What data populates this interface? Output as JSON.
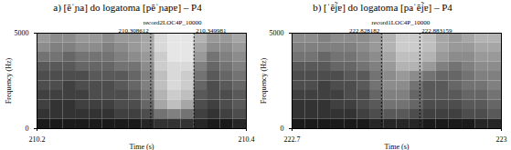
{
  "chart_data": [
    {
      "type": "heatmap",
      "title": "a) [ẽˈɲa] do logatoma [pẽˈɲapɐ] – P4",
      "x_label": "Time (s)",
      "y_label": "Frequency (Hz)",
      "xlim": [
        210.2,
        210.4
      ],
      "xticks": [
        210.2,
        210.4
      ],
      "ylim": [
        0,
        5000
      ],
      "yticks": [
        0,
        5000
      ],
      "annotations": [
        "record2LOC4P_10000"
      ],
      "cursors": [
        210.308612,
        210.349981
      ],
      "intensity_range": [
        0,
        100
      ],
      "intensity": [
        [
          40,
          45,
          45,
          40,
          40,
          45,
          40,
          40,
          35,
          15,
          10,
          10,
          30,
          40,
          40,
          35
        ],
        [
          45,
          50,
          50,
          45,
          45,
          50,
          45,
          40,
          35,
          15,
          10,
          10,
          35,
          45,
          45,
          40
        ],
        [
          55,
          55,
          60,
          55,
          55,
          55,
          50,
          45,
          40,
          20,
          10,
          10,
          40,
          55,
          50,
          45
        ],
        [
          65,
          65,
          65,
          60,
          60,
          60,
          55,
          55,
          45,
          20,
          15,
          15,
          50,
          60,
          55,
          50
        ],
        [
          70,
          70,
          70,
          70,
          65,
          65,
          65,
          60,
          50,
          25,
          15,
          20,
          55,
          65,
          60,
          55
        ],
        [
          70,
          70,
          75,
          70,
          70,
          70,
          65,
          60,
          50,
          25,
          15,
          20,
          60,
          70,
          65,
          60
        ],
        [
          75,
          75,
          75,
          75,
          70,
          70,
          70,
          65,
          55,
          30,
          20,
          25,
          65,
          70,
          70,
          65
        ],
        [
          75,
          80,
          80,
          75,
          75,
          75,
          70,
          70,
          60,
          35,
          25,
          35,
          70,
          75,
          70,
          65
        ],
        [
          80,
          80,
          80,
          80,
          80,
          80,
          75,
          75,
          70,
          55,
          50,
          55,
          75,
          80,
          75,
          70
        ],
        [
          90,
          90,
          90,
          90,
          90,
          90,
          90,
          90,
          85,
          80,
          80,
          80,
          85,
          90,
          90,
          85
        ]
      ]
    },
    {
      "type": "heatmap",
      "title": "b) [ˈẽj̃ɐ] do logatoma [paˈẽj̃ɐ] – P4",
      "x_label": "Time (s)",
      "y_label": "Frequency (Hz)",
      "xlim": [
        222.7,
        223
      ],
      "xticks": [
        222.7,
        223
      ],
      "ylim": [
        0,
        5000
      ],
      "yticks": [
        0,
        5000
      ],
      "annotations": [
        "record1LOC4P_10000"
      ],
      "cursors": [
        222.828182,
        222.883159
      ],
      "intensity_range": [
        0,
        100
      ],
      "intensity": [
        [
          45,
          45,
          50,
          45,
          45,
          45,
          40,
          30,
          20,
          20,
          25,
          35,
          40,
          35,
          30,
          30
        ],
        [
          50,
          50,
          50,
          50,
          50,
          45,
          40,
          30,
          20,
          20,
          25,
          35,
          40,
          40,
          35,
          35
        ],
        [
          55,
          55,
          60,
          55,
          55,
          50,
          45,
          35,
          25,
          25,
          30,
          40,
          45,
          45,
          40,
          40
        ],
        [
          65,
          65,
          65,
          60,
          60,
          55,
          50,
          40,
          30,
          30,
          40,
          50,
          55,
          50,
          45,
          45
        ],
        [
          70,
          70,
          70,
          70,
          65,
          65,
          55,
          45,
          40,
          45,
          55,
          60,
          60,
          55,
          50,
          50
        ],
        [
          70,
          70,
          75,
          70,
          70,
          65,
          55,
          45,
          45,
          55,
          65,
          65,
          60,
          55,
          55,
          50
        ],
        [
          75,
          75,
          75,
          75,
          70,
          70,
          60,
          50,
          50,
          60,
          65,
          65,
          65,
          60,
          60,
          55
        ],
        [
          80,
          80,
          80,
          75,
          75,
          70,
          65,
          55,
          55,
          60,
          70,
          70,
          70,
          65,
          65,
          60
        ],
        [
          80,
          80,
          80,
          80,
          80,
          75,
          70,
          65,
          65,
          70,
          75,
          75,
          75,
          70,
          70,
          65
        ],
        [
          90,
          90,
          90,
          90,
          90,
          90,
          85,
          85,
          85,
          85,
          90,
          90,
          90,
          90,
          85,
          85
        ]
      ]
    }
  ]
}
